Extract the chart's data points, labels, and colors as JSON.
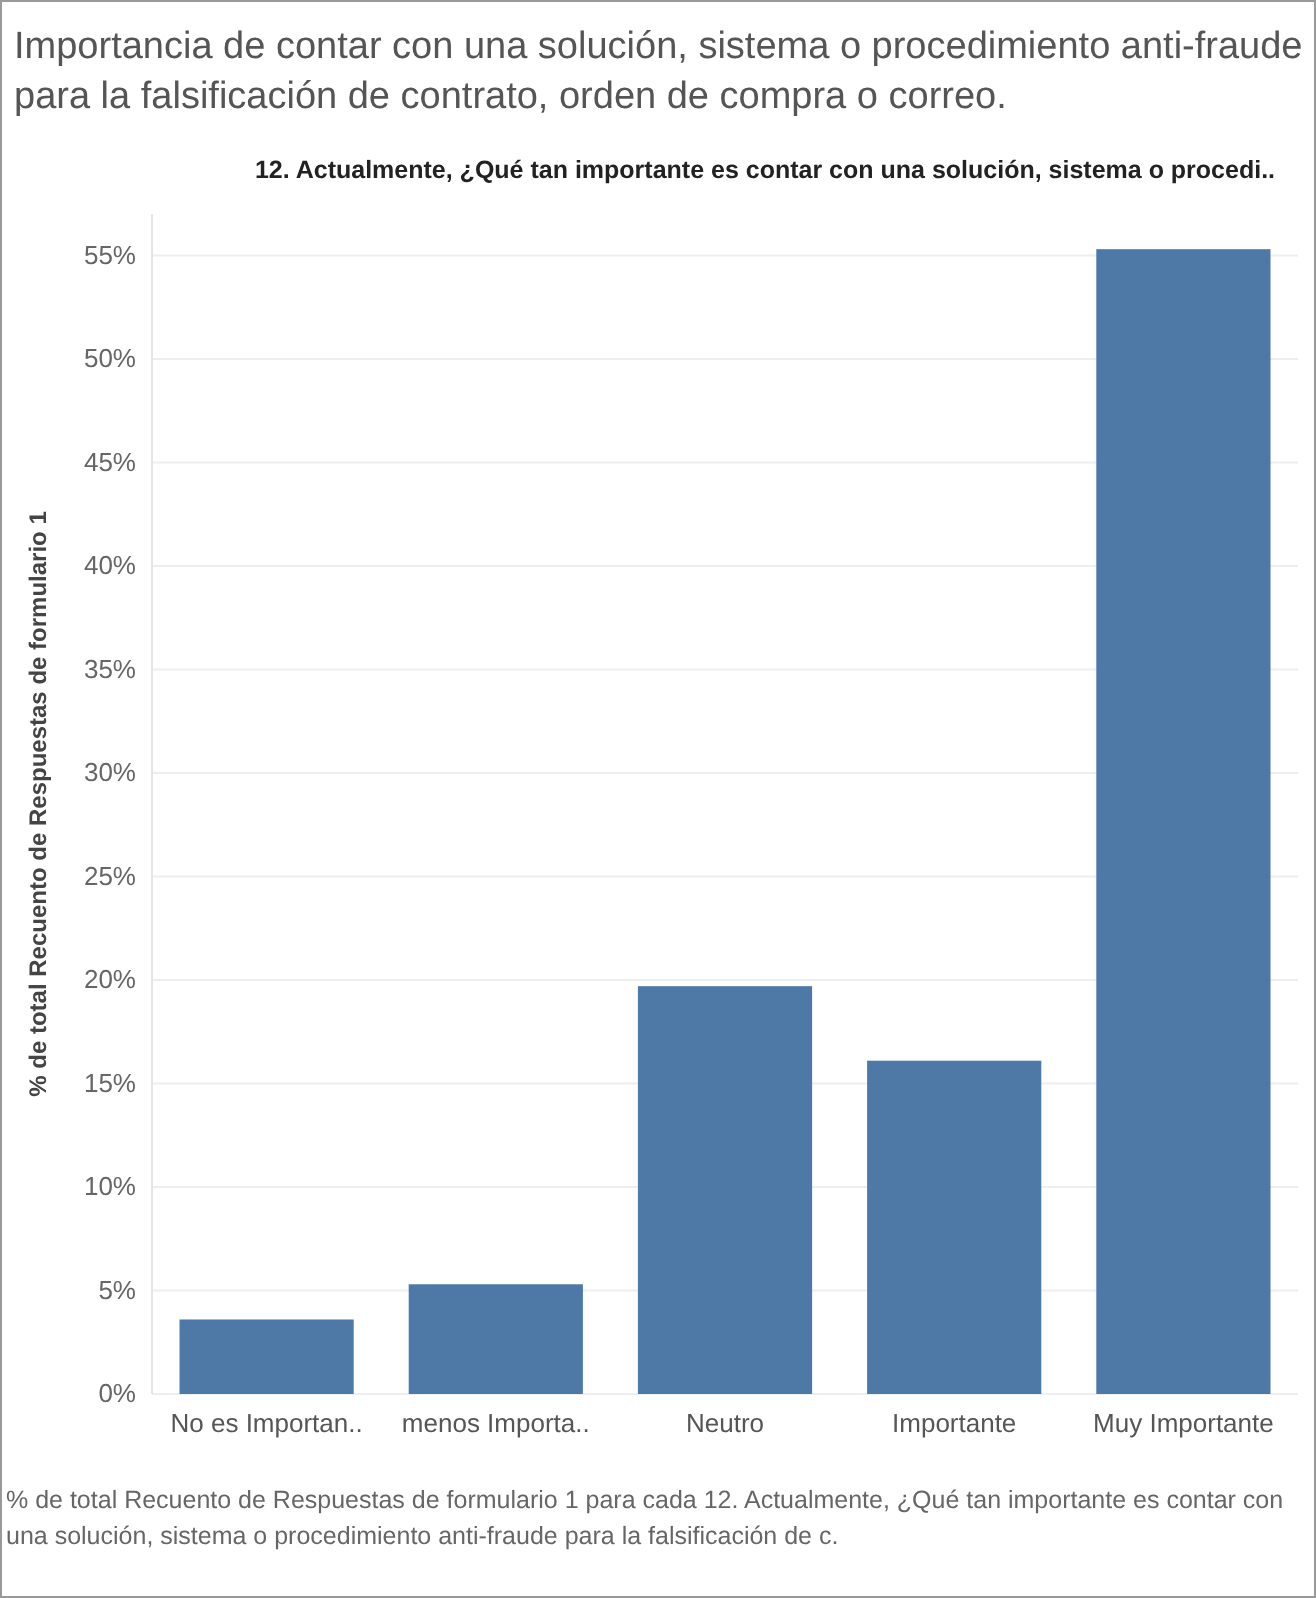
{
  "chart_data": {
    "type": "bar",
    "title": "Importancia de contar con una solución, sistema o procedimiento anti-fraude para la falsificación de contrato, orden de compra o correo.",
    "subtitle": "12. Actualmente, ¿Qué tan importante es contar con una solución, sistema o procedi..",
    "ylabel": "% de total Recuento de Respuestas de formulario 1",
    "categories": [
      "No es Importan..",
      "menos Importa..",
      "Neutro",
      "Importante",
      "Muy Importante"
    ],
    "values": [
      3.6,
      5.3,
      19.7,
      16.1,
      55.3
    ],
    "color": "#4e79a7",
    "ylim": [
      0,
      57
    ],
    "yticks": [
      {
        "value": 0,
        "label": "0%"
      },
      {
        "value": 5,
        "label": "5%"
      },
      {
        "value": 10,
        "label": "10%"
      },
      {
        "value": 15,
        "label": "15%"
      },
      {
        "value": 20,
        "label": "20%"
      },
      {
        "value": 25,
        "label": "25%"
      },
      {
        "value": 30,
        "label": "30%"
      },
      {
        "value": 35,
        "label": "35%"
      },
      {
        "value": 40,
        "label": "40%"
      },
      {
        "value": 45,
        "label": "45%"
      },
      {
        "value": 50,
        "label": "50%"
      },
      {
        "value": 55,
        "label": "55%"
      }
    ],
    "grid": "y",
    "annotations": [
      "% de total Recuento de Respuestas de formulario 1 para cada 12. Actualmente, ¿Qué tan importante es contar con una solución, sistema o procedimiento anti-fraude para la falsificación de c."
    ]
  }
}
